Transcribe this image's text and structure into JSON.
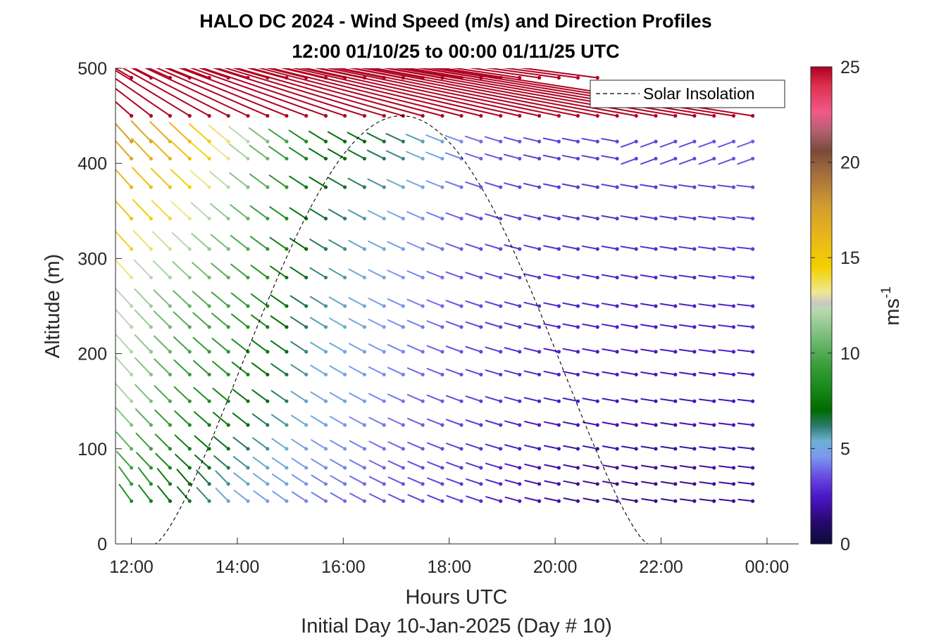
{
  "chart_data": {
    "type": "wind_barb_profile",
    "title": "HALO DC 2024 - Wind Speed (m/s) and Direction Profiles",
    "subtitle": "12:00 01/10/25 to 00:00 01/11/25  UTC",
    "xlabel": "Hours UTC",
    "xlabel2": "Initial Day 10-Jan-2025 (Day # 10)",
    "ylabel": "Altitude (m)",
    "x_range_hours": [
      11.7,
      24.6
    ],
    "ylim": [
      0,
      500
    ],
    "x_tick_labels": [
      "12:00",
      "14:00",
      "16:00",
      "18:00",
      "20:00",
      "22:00",
      "00:00"
    ],
    "x_tick_hours": [
      12,
      14,
      16,
      18,
      20,
      22,
      24
    ],
    "y_tick_labels": [
      "0",
      "100",
      "200",
      "300",
      "400",
      "500"
    ],
    "y_ticks": [
      0,
      100,
      200,
      300,
      400,
      500
    ],
    "colorbar": {
      "label": "ms",
      "label_exponent": "-1",
      "range": [
        0,
        25
      ],
      "tick_labels": [
        "0",
        "5",
        "10",
        "15",
        "20",
        "25"
      ],
      "ticks": [
        0,
        5,
        10,
        15,
        20,
        25
      ],
      "colormap": [
        [
          0,
          "#0b0b3a"
        ],
        [
          1.2,
          "#2a0870"
        ],
        [
          2.5,
          "#4a18c8"
        ],
        [
          3.6,
          "#6a50e0"
        ],
        [
          4.6,
          "#7a9af0"
        ],
        [
          5.4,
          "#6cb0d0"
        ],
        [
          6.2,
          "#2a7a6a"
        ],
        [
          7.0,
          "#006a00"
        ],
        [
          8.2,
          "#1a8a1a"
        ],
        [
          9.5,
          "#3fa03f"
        ],
        [
          11.0,
          "#7fbf7f"
        ],
        [
          12.3,
          "#b8dab0"
        ],
        [
          12.6,
          "#c8c8c8"
        ],
        [
          13.2,
          "#f0e890"
        ],
        [
          14.5,
          "#f2d000"
        ],
        [
          16.0,
          "#eab818"
        ],
        [
          17.8,
          "#d09a30"
        ],
        [
          19.5,
          "#a06a40"
        ],
        [
          20.6,
          "#7a4a38"
        ],
        [
          21.6,
          "#b06070"
        ],
        [
          22.6,
          "#f05a88"
        ],
        [
          24.0,
          "#e03050"
        ],
        [
          25,
          "#b00020"
        ]
      ]
    },
    "legend": {
      "position": "top-right",
      "entries": [
        "Solar Insolation"
      ]
    },
    "solar_insolation": {
      "style": "dashed",
      "color": "#000000",
      "sunrise_hour": 12.45,
      "peak_hour": 17.1,
      "sunset_hour": 21.75,
      "peak_altitude_units": 450
    },
    "wind_barbs": {
      "times_hours": [
        12.0,
        12.37,
        12.73,
        13.1,
        13.47,
        13.83,
        14.2,
        14.57,
        14.93,
        15.3,
        15.67,
        16.03,
        16.4,
        16.77,
        17.13,
        17.5,
        17.87,
        18.23,
        18.6,
        18.97,
        19.33,
        19.7,
        20.07,
        20.43,
        20.8,
        21.17,
        21.53,
        21.9,
        22.27,
        22.63,
        23.0,
        23.37,
        23.73
      ],
      "altitudes_m": [
        45,
        63,
        80,
        100,
        125,
        150,
        178,
        202,
        228,
        250,
        280,
        310,
        342,
        375,
        405,
        423,
        450,
        490
      ],
      "speed_profile": [
        [
          12.0,
          8.5,
          12.0,
          12.5,
          15.2,
          17.5
        ],
        [
          13.0,
          6.8,
          9.0,
          10.5,
          13.5,
          16.5
        ],
        [
          14.0,
          5.2,
          7.8,
          9.5,
          11.0,
          13.0
        ],
        [
          15.5,
          4.2,
          5.2,
          6.0,
          6.8,
          7.6
        ],
        [
          17.0,
          3.6,
          4.2,
          4.6,
          5.0,
          6.5
        ],
        [
          18.5,
          3.0,
          3.3,
          3.5,
          3.6,
          4.0
        ],
        [
          20.0,
          1.8,
          2.5,
          2.8,
          3.0,
          3.2
        ],
        [
          22.0,
          1.6,
          2.2,
          2.6,
          3.0,
          3.4
        ],
        [
          23.8,
          1.8,
          2.4,
          2.8,
          3.3,
          3.8
        ]
      ],
      "direction_note": "Barbs tilt steeply from upper-left in the morning (northwesterly flow), flattening to near-westerly in the evening; evening upper levels show a slight rise to the right."
    }
  }
}
